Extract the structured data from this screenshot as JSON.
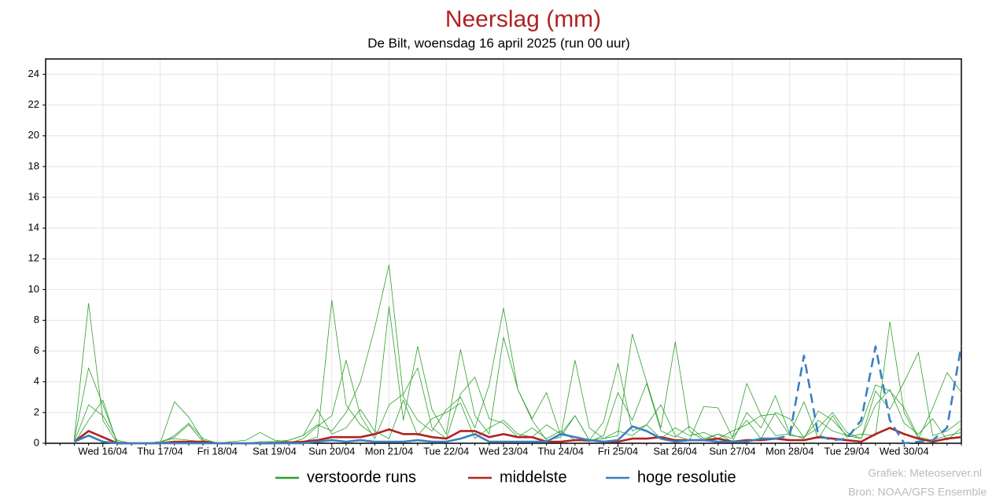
{
  "chart_data": {
    "type": "line",
    "title": "Neerslag (mm)",
    "subtitle": "De Bilt, woensdag 16 april 2025 (run 00 uur)",
    "credits": [
      "Grafiek: Meteoserver.nl",
      "Bron: NOAA/GFS Ensemble"
    ],
    "categories": [
      null,
      null,
      null,
      null,
      "Wed 16/04",
      null,
      null,
      null,
      "Thu 17/04",
      null,
      null,
      null,
      "Fri 18/04",
      null,
      null,
      null,
      "Sat 19/04",
      null,
      null,
      null,
      "Sun 20/04",
      null,
      null,
      null,
      "Mon 21/04",
      null,
      null,
      null,
      "Tue 22/04",
      null,
      null,
      null,
      "Wed 23/04",
      null,
      null,
      null,
      "Thu 24/04",
      null,
      null,
      null,
      "Fri 25/04",
      null,
      null,
      null,
      "Sat 26/04",
      null,
      null,
      null,
      "Sun 27/04",
      null,
      null,
      null,
      "Mon 28/04",
      null,
      null,
      null,
      "Tue 29/04",
      null,
      null,
      null,
      "Wed 30/04",
      null,
      null,
      null,
      null
    ],
    "ylim": [
      0,
      25
    ],
    "yticks": [
      0,
      2,
      4,
      6,
      8,
      10,
      12,
      14,
      16,
      18,
      20,
      22,
      24
    ],
    "grid": true,
    "series": [
      {
        "name": "verstoorde runs",
        "color": "#2ca02c",
        "values": [
          null,
          null,
          0.3,
          9.1,
          1.5,
          0,
          0,
          0,
          0.1,
          0.3,
          0.2,
          0.1,
          0,
          0,
          0,
          0,
          0.1,
          0.2,
          0.5,
          1.2,
          0.8,
          2.0,
          4.0,
          7.5,
          11.6,
          3.0,
          1.5,
          0.8,
          2.2,
          3.0,
          1.0,
          3.8,
          8.8,
          3.5,
          1.6,
          3.3,
          0.5,
          5.4,
          1.0,
          0.3,
          0.5,
          7.1,
          4.0,
          1.0,
          6.6,
          0.8,
          0.2,
          0.6,
          0.3,
          3.9,
          1.8,
          0.5,
          0.6,
          2.7,
          0.3,
          1.8,
          0.4,
          0.6,
          0.5,
          7.9,
          2.0,
          0.3,
          2.3,
          4.6,
          3.3
        ]
      },
      {
        "color": "#2ca02c",
        "values": [
          null,
          null,
          0.2,
          4.9,
          2.5,
          0.1,
          0,
          0,
          0,
          2.7,
          1.7,
          0.2,
          0,
          0.1,
          0.2,
          0.7,
          0.2,
          0.1,
          0.1,
          0.4,
          9.3,
          2.5,
          1.2,
          0.5,
          8.9,
          1.5,
          6.3,
          2.2,
          0.6,
          6.1,
          1.8,
          0.6,
          6.9,
          3.5,
          1.5,
          0.2,
          0.4,
          1.8,
          0.2,
          1.4,
          5.2,
          0.8,
          1.2,
          2.5,
          0.5,
          0.2,
          2.4,
          2.3,
          0.4,
          1.5,
          0.3,
          2.0,
          1.6,
          0.4,
          1.0,
          2.0,
          0.7,
          0.3,
          3.4,
          2.2,
          4.0,
          5.9,
          0.5,
          0.8,
          1.5
        ]
      },
      {
        "color": "#2ca02c",
        "values": [
          null,
          null,
          0.1,
          2.5,
          1.8,
          0.2,
          0,
          0,
          0.1,
          0.4,
          1.2,
          0.1,
          0,
          0,
          0,
          0.1,
          0.1,
          0,
          0.3,
          1.1,
          1.8,
          5.4,
          1.8,
          0.3,
          2.5,
          3.2,
          4.9,
          1.0,
          0.3,
          3.2,
          4.3,
          1.6,
          1.3,
          0.4,
          1.0,
          0.3,
          0.8,
          0.2,
          0.1,
          0.5,
          3.3,
          1.5,
          3.9,
          0.8,
          0.4,
          1.1,
          0.3,
          0.6,
          0.1,
          2.0,
          1.0,
          3.1,
          0.6,
          0.3,
          2.1,
          1.5,
          0.5,
          1.2,
          3.8,
          3.4,
          2.3,
          0.4,
          0.2,
          0.5,
          0.7
        ]
      },
      {
        "color": "#2ca02c",
        "values": [
          null,
          null,
          0,
          1.5,
          2.8,
          0,
          0,
          0,
          0,
          0.5,
          1.3,
          0.3,
          0,
          0,
          0,
          0,
          0,
          0.2,
          0.5,
          2.2,
          0.6,
          1.0,
          2.2,
          0.8,
          0.3,
          2.8,
          0.5,
          1.6,
          2.0,
          2.6,
          0.3,
          1.0,
          1.5,
          0.6,
          0.4,
          1.2,
          0.6,
          1.8,
          0.2,
          0.3,
          0.8,
          0.5,
          1.2,
          0.3,
          1.0,
          0.5,
          0.7,
          0.3,
          0.8,
          1.2,
          1.8,
          1.9,
          0.5,
          0.4,
          1.5,
          0.8,
          0.5,
          0.3,
          2.5,
          3.5,
          1.3,
          0.6,
          1.6,
          0.2,
          1.0
        ]
      },
      {
        "name": "middelste",
        "color": "#b22222",
        "values": [
          null,
          null,
          0.1,
          0.8,
          0.4,
          0,
          0,
          0,
          0,
          0.1,
          0.1,
          0.1,
          0,
          0,
          0,
          0,
          0,
          0.05,
          0.1,
          0.2,
          0.4,
          0.4,
          0.4,
          0.6,
          0.9,
          0.6,
          0.6,
          0.4,
          0.3,
          0.8,
          0.8,
          0.4,
          0.6,
          0.4,
          0.4,
          0.1,
          0.1,
          0.2,
          0.2,
          0.1,
          0.1,
          0.3,
          0.3,
          0.4,
          0.2,
          0.2,
          0.2,
          0.3,
          0.1,
          0.2,
          0.2,
          0.3,
          0.2,
          0.2,
          0.4,
          0.3,
          0.2,
          0.1,
          0.6,
          1.0,
          0.6,
          0.3,
          0.1,
          0.3,
          0.4
        ]
      },
      {
        "name": "hoge resolutie",
        "color": "#3a7fc1",
        "values": [
          null,
          null,
          0.1,
          0.5,
          0.1,
          0,
          0,
          0,
          0,
          0,
          0,
          0,
          0,
          0,
          0,
          0,
          0,
          0,
          0,
          0.1,
          0.2,
          0.1,
          0.2,
          0.1,
          0.1,
          0.1,
          0.2,
          0.1,
          0.1,
          0.3,
          0.6,
          0.1,
          0.1,
          0.1,
          0.1,
          0.1,
          0.6,
          0.4,
          0.2,
          0.1,
          0.2,
          1.1,
          0.8,
          0.3,
          0.1,
          0.2,
          0.2,
          0.1,
          0.1,
          0.1,
          0.3,
          0.3,
          null,
          null,
          null,
          null,
          null,
          null,
          null,
          null,
          null,
          null,
          null,
          null,
          null
        ]
      },
      {
        "color": "#3a7fc1",
        "dashed": true,
        "values": [
          null,
          null,
          null,
          null,
          null,
          null,
          null,
          null,
          null,
          null,
          null,
          null,
          null,
          null,
          null,
          null,
          null,
          null,
          null,
          null,
          null,
          null,
          null,
          null,
          null,
          null,
          null,
          null,
          null,
          null,
          null,
          null,
          null,
          null,
          null,
          null,
          null,
          null,
          null,
          null,
          null,
          null,
          null,
          null,
          null,
          null,
          null,
          null,
          null,
          null,
          null,
          0.3,
          0.5,
          5.7,
          0.5,
          0.2,
          0.3,
          1.5,
          6.3,
          1.5,
          0,
          0.1,
          0.2,
          1.0,
          6.4
        ]
      }
    ]
  }
}
